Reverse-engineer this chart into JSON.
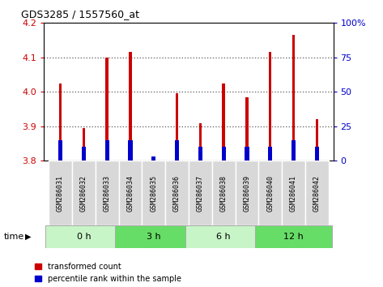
{
  "title": "GDS3285 / 1557560_at",
  "samples": [
    "GSM286031",
    "GSM286032",
    "GSM286033",
    "GSM286034",
    "GSM286035",
    "GSM286036",
    "GSM286037",
    "GSM286038",
    "GSM286039",
    "GSM286040",
    "GSM286041",
    "GSM286042"
  ],
  "red_values": [
    4.025,
    3.895,
    4.1,
    4.115,
    3.805,
    3.995,
    3.91,
    4.025,
    3.985,
    4.115,
    4.165,
    3.92
  ],
  "blue_values_pct": [
    15,
    10,
    15,
    15,
    3,
    15,
    10,
    10,
    10,
    10,
    15,
    10
  ],
  "base": 3.8,
  "ylim": [
    3.8,
    4.2
  ],
  "yticks_left": [
    3.8,
    3.9,
    4.0,
    4.1,
    4.2
  ],
  "yticks_right": [
    0,
    25,
    50,
    75,
    100
  ],
  "ylabel_left_color": "#cc0000",
  "ylabel_right_color": "#0000cc",
  "groups": [
    {
      "label": "0 h",
      "start": 0,
      "end": 3,
      "color": "#c8f5c8"
    },
    {
      "label": "3 h",
      "start": 3,
      "end": 6,
      "color": "#66dd66"
    },
    {
      "label": "6 h",
      "start": 6,
      "end": 9,
      "color": "#c8f5c8"
    },
    {
      "label": "12 h",
      "start": 9,
      "end": 12,
      "color": "#66dd66"
    }
  ],
  "bar_width": 0.12,
  "blue_bar_width": 0.18,
  "red_color": "#cc0000",
  "blue_color": "#0000cc",
  "legend_red": "transformed count",
  "legend_blue": "percentile rank within the sample",
  "time_label": "time",
  "sample_bg_color": "#d8d8d8",
  "grid_color": "#888888"
}
